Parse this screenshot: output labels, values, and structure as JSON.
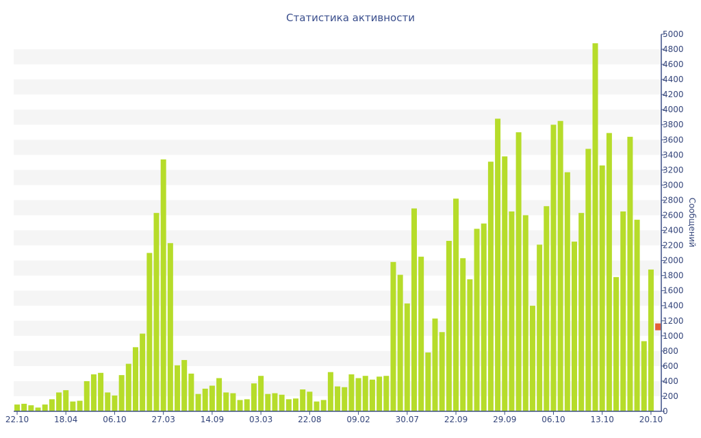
{
  "chart_data": {
    "type": "bar",
    "title": "Статистика активности",
    "xlabel": "",
    "ylabel": "Сообщений",
    "ylim": [
      0,
      5000
    ],
    "y_ticks": [
      0,
      200,
      400,
      600,
      800,
      1000,
      1200,
      1400,
      1600,
      1800,
      2000,
      2200,
      2400,
      2600,
      2800,
      3000,
      3200,
      3400,
      3600,
      3800,
      4000,
      4200,
      4400,
      4600,
      4800,
      5000
    ],
    "y_axis_position": "right",
    "grid": "alternating horizontal bands",
    "x_tick_labels": [
      {
        "label": "22.10",
        "index": 0
      },
      {
        "label": "18.04",
        "index": 7
      },
      {
        "label": "06.10",
        "index": 14
      },
      {
        "label": "27.03",
        "index": 21
      },
      {
        "label": "14.09",
        "index": 28
      },
      {
        "label": "03.03",
        "index": 35
      },
      {
        "label": "22.08",
        "index": 42
      },
      {
        "label": "09.02",
        "index": 49
      },
      {
        "label": "30.07",
        "index": 56
      },
      {
        "label": "22.09",
        "index": 63
      },
      {
        "label": "29.09",
        "index": 70
      },
      {
        "label": "06.10",
        "index": 77
      },
      {
        "label": "13.10",
        "index": 84
      },
      {
        "label": "20.10",
        "index": 91
      }
    ],
    "series": [
      {
        "color": "#b6dc2a",
        "values": [
          90,
          100,
          80,
          50,
          90,
          160,
          250,
          280,
          130,
          140,
          400,
          490,
          510,
          250,
          210,
          480,
          630,
          850,
          1030,
          2100,
          2630,
          3340,
          2230,
          610,
          680,
          500,
          230,
          300,
          340,
          440,
          250,
          240,
          150,
          160,
          370,
          470,
          230,
          240,
          220,
          160,
          170,
          290,
          260,
          130,
          150,
          520,
          330,
          320,
          490,
          440,
          470,
          420,
          460,
          470,
          1980,
          1810,
          1430,
          2690,
          2050,
          780,
          1230,
          1050,
          2260,
          2820,
          2030,
          1750,
          2420,
          2490,
          3310,
          3880,
          3380,
          2650,
          3700,
          2600,
          1400,
          2210,
          2720,
          3800,
          3850,
          3170,
          2250,
          2630,
          3480,
          4880,
          3260,
          3690,
          1780,
          2650,
          3640,
          2540,
          930,
          1880
        ]
      }
    ],
    "highlight": {
      "index": 92,
      "value": 1120,
      "color": "#e2603a"
    }
  }
}
